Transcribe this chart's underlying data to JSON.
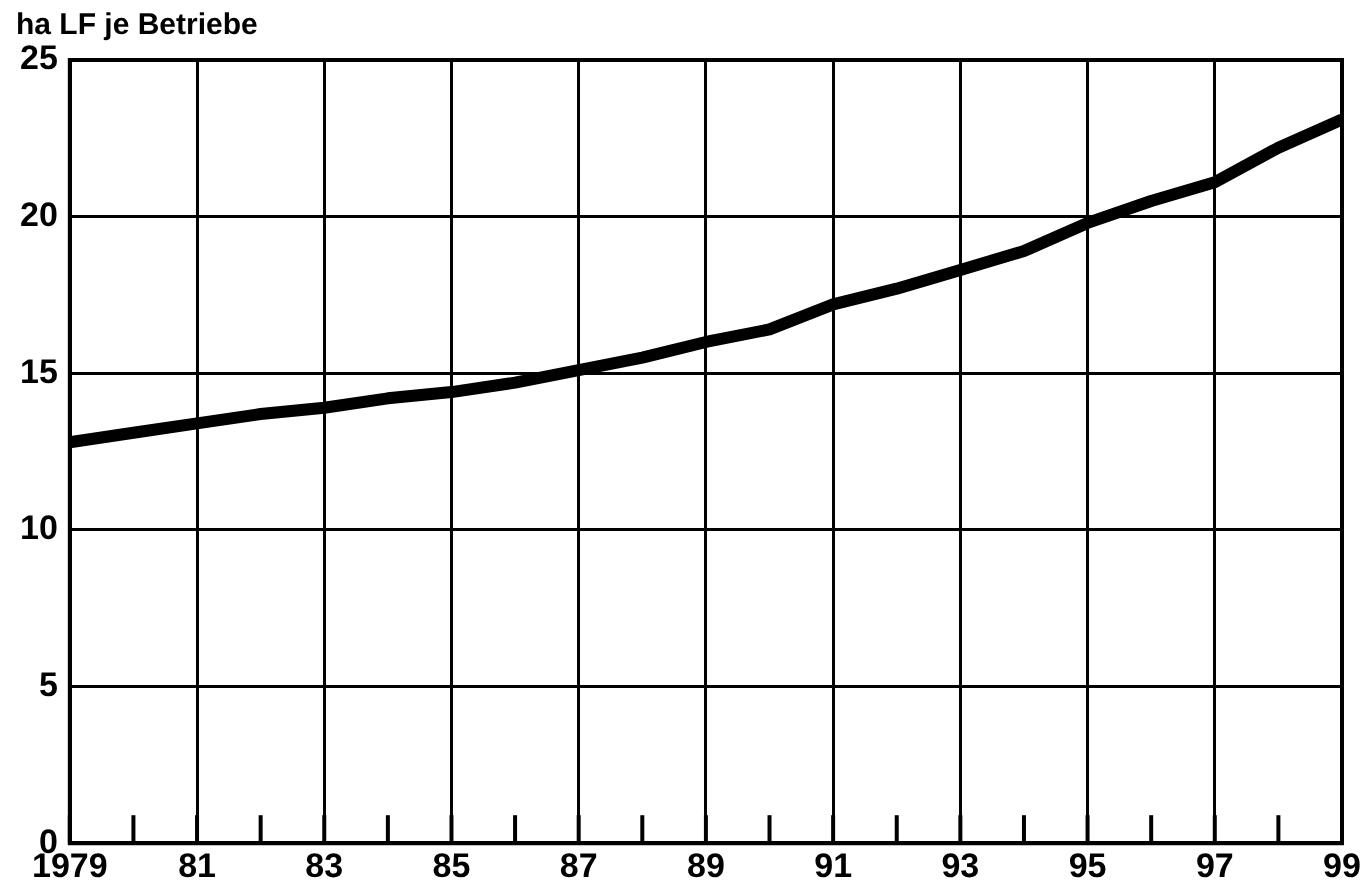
{
  "chart_data": {
    "type": "line",
    "ylabel": "ha LF je Betriebe",
    "x": [
      1979,
      1980,
      1981,
      1982,
      1983,
      1984,
      1985,
      1986,
      1987,
      1988,
      1989,
      1990,
      1991,
      1992,
      1993,
      1994,
      1995,
      1996,
      1997,
      1998,
      1999
    ],
    "series": [
      {
        "color": "#000000",
        "values": [
          12.8,
          13.1,
          13.4,
          13.7,
          13.9,
          14.2,
          14.4,
          14.7,
          15.1,
          15.5,
          16.0,
          16.4,
          17.2,
          17.7,
          18.3,
          18.9,
          19.8,
          20.5,
          21.1,
          22.2,
          23.1
        ]
      }
    ],
    "xlim": [
      1979,
      1999
    ],
    "xticks": [
      {
        "value": 1979,
        "label": "1979"
      },
      {
        "value": 1980,
        "label": null
      },
      {
        "value": 1981,
        "label": "81"
      },
      {
        "value": 1982,
        "label": null
      },
      {
        "value": 1983,
        "label": "83"
      },
      {
        "value": 1984,
        "label": null
      },
      {
        "value": 1985,
        "label": "85"
      },
      {
        "value": 1986,
        "label": null
      },
      {
        "value": 1987,
        "label": "87"
      },
      {
        "value": 1988,
        "label": null
      },
      {
        "value": 1989,
        "label": "89"
      },
      {
        "value": 1990,
        "label": null
      },
      {
        "value": 1991,
        "label": "91"
      },
      {
        "value": 1992,
        "label": null
      },
      {
        "value": 1993,
        "label": "93"
      },
      {
        "value": 1994,
        "label": null
      },
      {
        "value": 1995,
        "label": "95"
      },
      {
        "value": 1996,
        "label": null
      },
      {
        "value": 1997,
        "label": "97"
      },
      {
        "value": 1998,
        "label": null
      },
      {
        "value": 1999,
        "label": "99"
      }
    ],
    "ylim": [
      0,
      25
    ],
    "yticks": [
      0,
      5,
      10,
      15,
      20,
      25
    ],
    "grid": true,
    "legend": false,
    "marker": "none",
    "line_style": "solid"
  }
}
